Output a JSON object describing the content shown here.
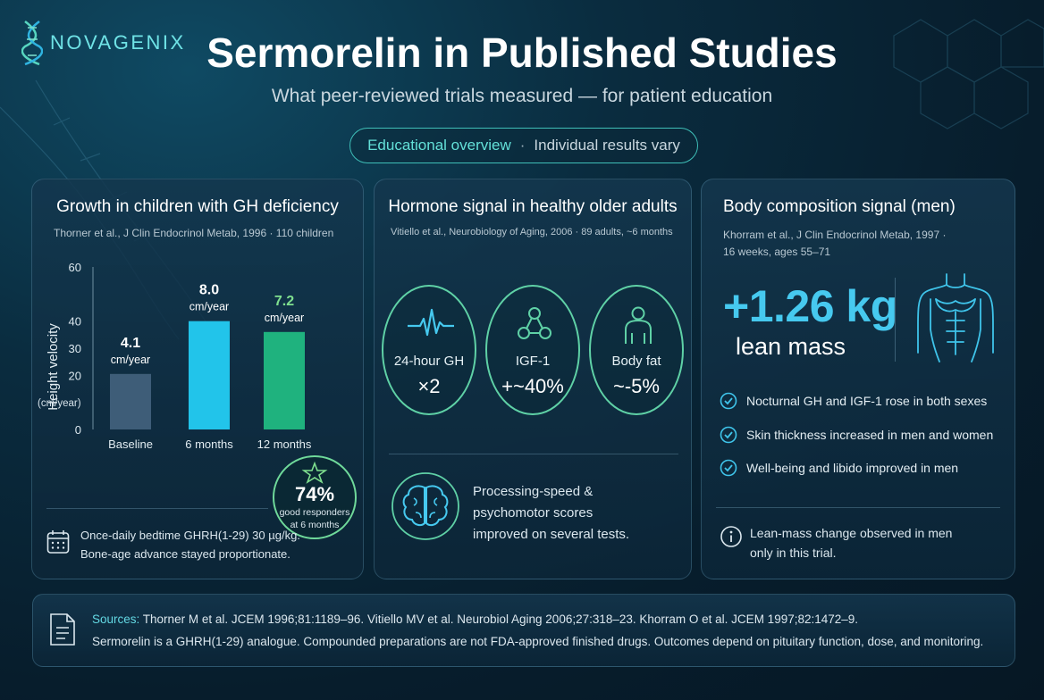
{
  "brand": {
    "name": "NOVAGENIX",
    "icon": "dna-icon"
  },
  "header": {
    "title": "Sermorelin in Published Studies",
    "subtitle": "What peer-reviewed trials measured — for patient education",
    "pill_left": "Educational overview",
    "pill_sep": "·",
    "pill_right": "Individual results vary"
  },
  "colors": {
    "accent_teal": "#63e0d8",
    "bar_baseline": "#3e5d78",
    "bar_6mo": "#22c4ea",
    "bar_12mo": "#1fb27e",
    "highlight_green": "#7fe08f"
  },
  "card1": {
    "title": "Growth in children with GH deficiency",
    "citation": "Thorner et al., J Clin Endocrinol Metab, 1996 · 110 children",
    "chart_data": {
      "type": "bar",
      "categories": [
        "Baseline",
        "6 months",
        "12 months"
      ],
      "values": [
        4.1,
        8.0,
        7.2
      ],
      "value_labels": [
        "4.1",
        "8.0",
        "7.2"
      ],
      "unit_label": "cm/year",
      "ylabel": "Height velocity",
      "ylabel_unit": "(cm/year)",
      "yticks": [
        "0",
        "20",
        "30",
        "40",
        "60"
      ],
      "ylim": [
        0,
        60
      ],
      "grid": false
    },
    "badge": {
      "value": "74%",
      "line1": "good responders",
      "line2": "at 6 months",
      "icon": "star-icon"
    },
    "note_line1": "Once-daily bedtime GHRH(1-29) 30 µg/kg.",
    "note_line2": "Bone-age advance stayed proportionate.",
    "note_icon": "calendar-icon"
  },
  "card2": {
    "title": "Hormone signal in healthy older adults",
    "citation": "Vitiello et al., Neurobiology of Aging, 2006 · 89 adults, ~6 months",
    "metrics": [
      {
        "label": "24-hour GH",
        "value": "×2",
        "icon": "pulse-icon"
      },
      {
        "label": "IGF-1",
        "value": "+~40%",
        "icon": "molecule-icon"
      },
      {
        "label": "Body fat",
        "value": "~-5%",
        "icon": "person-icon"
      }
    ],
    "cognition_line1": "Processing-speed &",
    "cognition_line2": "psychomotor scores",
    "cognition_line3": "improved on several tests.",
    "cognition_icon": "brain-icon"
  },
  "card3": {
    "title": "Body composition signal (men)",
    "citation_line1": "Khorram et al., J Clin Endocrinol Metab, 1997 ·",
    "citation_line2": "16 weeks, ages 55–71",
    "stat_value": "+1.26 kg",
    "stat_label": "lean mass",
    "torso_icon": "torso-icon",
    "checks": [
      "Nocturnal GH and IGF-1 rose in both sexes",
      "Skin thickness increased in men and women",
      "Well-being and libido improved in men"
    ],
    "info_line1": "Lean-mass change observed in men",
    "info_line2": "only in this trial.",
    "info_icon": "info-icon"
  },
  "sources": {
    "label": "Sources:",
    "refs": "Thorner M et al. JCEM 1996;81:1189–96. Vitiello MV et al. Neurobiol Aging 2006;27:318–23. Khorram O et al. JCEM 1997;82:1472–9.",
    "disclaimer": "Sermorelin is a GHRH(1-29) analogue. Compounded preparations are not FDA-approved finished drugs. Outcomes depend on pituitary function, dose, and monitoring.",
    "icon": "document-icon"
  }
}
